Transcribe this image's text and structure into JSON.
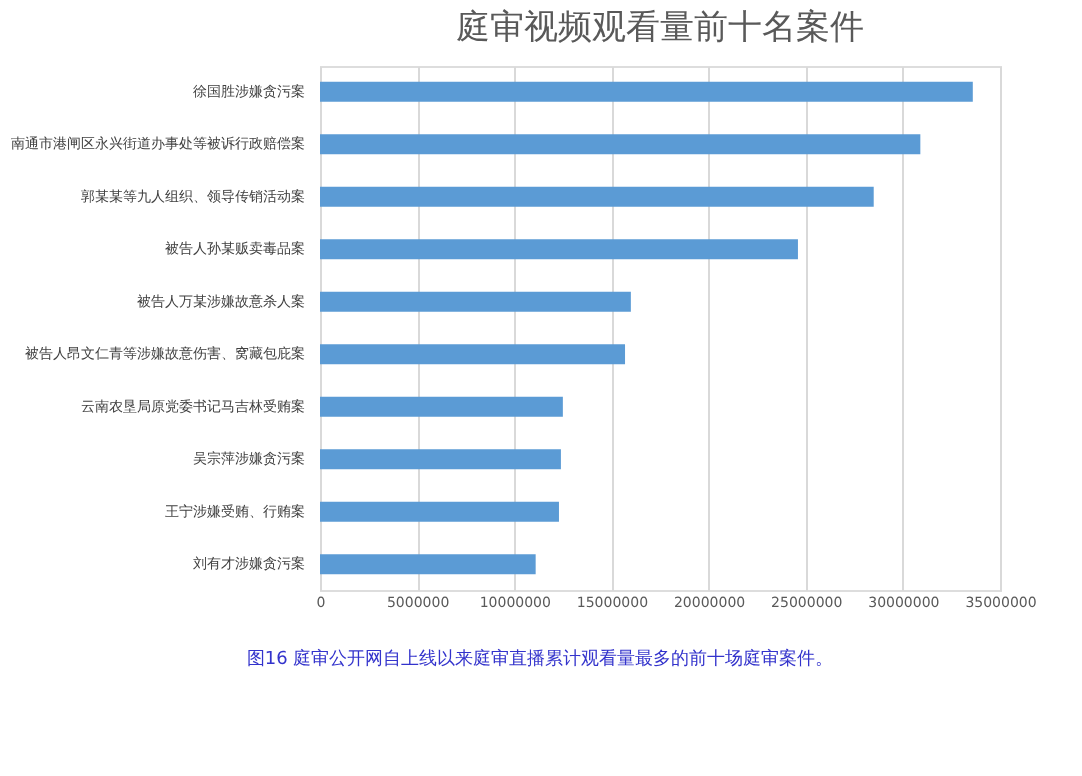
{
  "chart_data": {
    "type": "bar",
    "orientation": "horizontal",
    "title": "庭审视频观看量前十名案件",
    "categories": [
      "徐国胜涉嫌贪污案",
      "南通市港闸区永兴街道办事处等被诉行政赔偿案",
      "郭某某等九人组织、领导传销活动案",
      "被告人孙某贩卖毒品案",
      "被告人万某涉嫌故意杀人案",
      "被告人昂文仁青等涉嫌故意伤害、窝藏包庇案",
      "云南农垦局原党委书记马吉林受贿案",
      "吴宗萍涉嫌贪污案",
      "王宁涉嫌受贿、行贿案",
      "刘有才涉嫌贪污案"
    ],
    "values": [
      33600000,
      30900000,
      28500000,
      24600000,
      16000000,
      15700000,
      12500000,
      12400000,
      12300000,
      11100000
    ],
    "color": "#5b9bd5",
    "xlim": [
      0,
      35000000
    ],
    "xticks": [
      0,
      5000000,
      10000000,
      15000000,
      20000000,
      25000000,
      30000000,
      35000000
    ],
    "grid": "x",
    "annotations": [
      "图16 庭审公开网自上线以来庭审直播累计观看量最多的前十场庭审案件。"
    ]
  }
}
